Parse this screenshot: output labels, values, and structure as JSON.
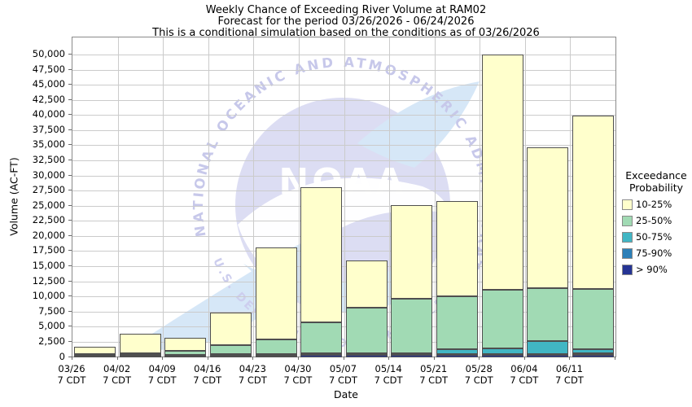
{
  "header": {
    "title_line1": "Weekly Chance of Exceeding River Volume at RAM02",
    "title_line2": "Forecast for the period 03/26/2026 - 06/24/2026",
    "title_line3": "This is a conditional simulation based on the conditions as of 03/26/2026"
  },
  "axes": {
    "y_label": "Volume (AC-FT)",
    "x_label": "Date",
    "y_tick_labels": [
      "0",
      "2,500",
      "5,000",
      "7,500",
      "10,000",
      "12,500",
      "15,000",
      "17,500",
      "20,000",
      "22,500",
      "25,000",
      "27,500",
      "30,000",
      "32,500",
      "35,000",
      "37,500",
      "40,000",
      "42,500",
      "45,000",
      "47,500",
      "50,000"
    ]
  },
  "legend": {
    "title_line1": "Exceedance",
    "title_line2": "Probability",
    "entries": [
      {
        "label": "10-25%",
        "color": "#FFFFCC"
      },
      {
        "label": "25-50%",
        "color": "#A1DAB4"
      },
      {
        "label": "50-75%",
        "color": "#41B6C4"
      },
      {
        "label": "75-90%",
        "color": "#2C7FB8"
      },
      {
        "label": "> 90%",
        "color": "#253494"
      }
    ]
  },
  "watermark": {
    "ring_text": "NATIONAL OCEANIC AND ATMOSPHERIC ADMINISTRATION",
    "emblem_text": "NOAA",
    "bottom_text": "U.S. DEPARTMENT OF COMMERCE"
  },
  "chart_data": {
    "type": "bar",
    "stacked": true,
    "title": "Weekly Chance of Exceeding River Volume at RAM02",
    "xlabel": "Date",
    "ylabel": "Volume (AC-FT)",
    "ylim": [
      0,
      50000
    ],
    "ytick_step": 2500,
    "grid": true,
    "legend_position": "right",
    "legend_title": "Exceedance Probability",
    "categories": [
      "03/26",
      "04/02",
      "04/09",
      "04/16",
      "04/23",
      "04/30",
      "05/07",
      "05/14",
      "05/21",
      "05/28",
      "06/04",
      "06/11"
    ],
    "category_sublabel": "7 CDT",
    "series": [
      {
        "name": "> 90%",
        "color": "#253494",
        "values": [
          200,
          220,
          220,
          250,
          250,
          280,
          280,
          280,
          280,
          300,
          300,
          320
        ]
      },
      {
        "name": "75-90%",
        "color": "#2C7FB8",
        "values": [
          80,
          80,
          80,
          80,
          100,
          100,
          100,
          120,
          150,
          170,
          170,
          240
        ]
      },
      {
        "name": "50-75%",
        "color": "#41B6C4",
        "values": [
          70,
          80,
          100,
          120,
          150,
          170,
          170,
          200,
          810,
          900,
          2110,
          680
        ]
      },
      {
        "name": "25-50%",
        "color": "#A1DAB4",
        "values": [
          150,
          270,
          550,
          1550,
          2400,
          5150,
          7550,
          9000,
          8810,
          9730,
          8820,
          9960
        ]
      },
      {
        "name": "10-25%",
        "color": "#FFFFCC",
        "values": [
          1200,
          3150,
          2150,
          5400,
          15200,
          22300,
          7900,
          15500,
          15750,
          38900,
          23200,
          28700
        ]
      }
    ],
    "bar_totals": [
      1700,
      3800,
      3100,
      7400,
      18100,
      28000,
      16000,
      25100,
      25800,
      50000,
      34600,
      39900
    ]
  }
}
